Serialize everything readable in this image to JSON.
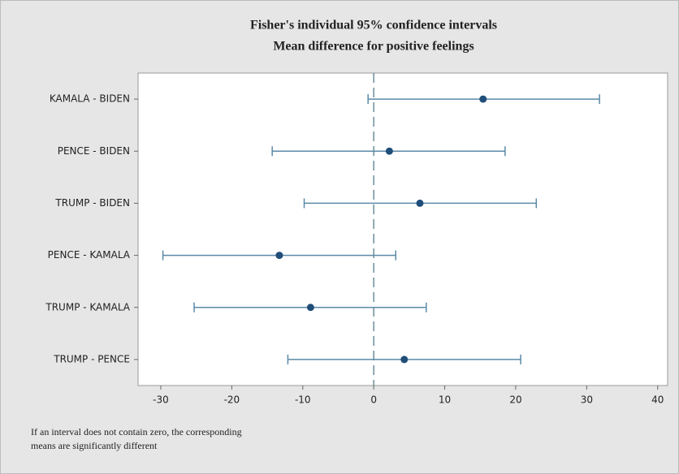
{
  "chart_data": {
    "type": "interval",
    "title": "Fisher's individual 95% confidence intervals",
    "subtitle": "Mean difference for positive feelings",
    "categories": [
      "KAMALA - BIDEN",
      "PENCE - BIDEN",
      "TRUMP - BIDEN",
      "PENCE - KAMALA",
      "TRUMP - KAMALA",
      "TRUMP - PENCE"
    ],
    "values": [
      15.4,
      2.2,
      6.5,
      -13.3,
      -8.9,
      4.3
    ],
    "lower": [
      -0.8,
      -14.3,
      -9.8,
      -29.7,
      -25.3,
      -12.1
    ],
    "upper": [
      31.8,
      18.5,
      22.9,
      3.1,
      7.4,
      20.7
    ],
    "color": "#1f4e79",
    "xlim": [
      -33.2,
      41.4
    ],
    "xticks": [
      -30,
      -20,
      -10,
      0,
      10,
      20,
      30,
      40
    ],
    "reference_line": 0,
    "footnote": [
      "If an interval does not contain zero, the corresponding",
      "means are significantly different"
    ]
  }
}
